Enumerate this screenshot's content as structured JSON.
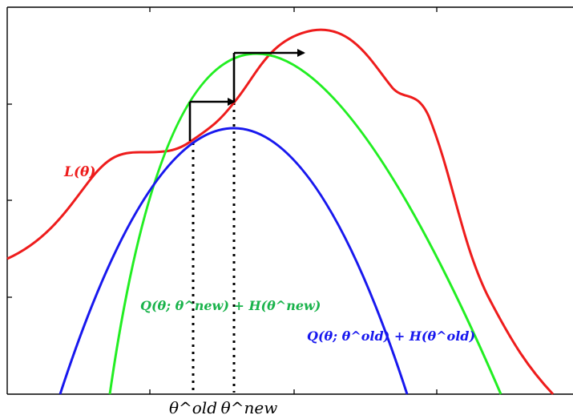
{
  "labels": {
    "L": "L(θ)",
    "q_new": "Q(θ; θ^new) + H(θ^new)",
    "q_old": "Q(θ; θ^old) + H(θ^old)",
    "theta_old": "θ^old",
    "theta_new": "θ^new"
  },
  "colors": {
    "L": "#ee1c1c",
    "q_new": "#22ee22",
    "q_old": "#1818ee",
    "q_new_label": "#19b34b",
    "q_old_label": "#1818ee",
    "arrow": "#000000",
    "axis": "#000000"
  }
}
